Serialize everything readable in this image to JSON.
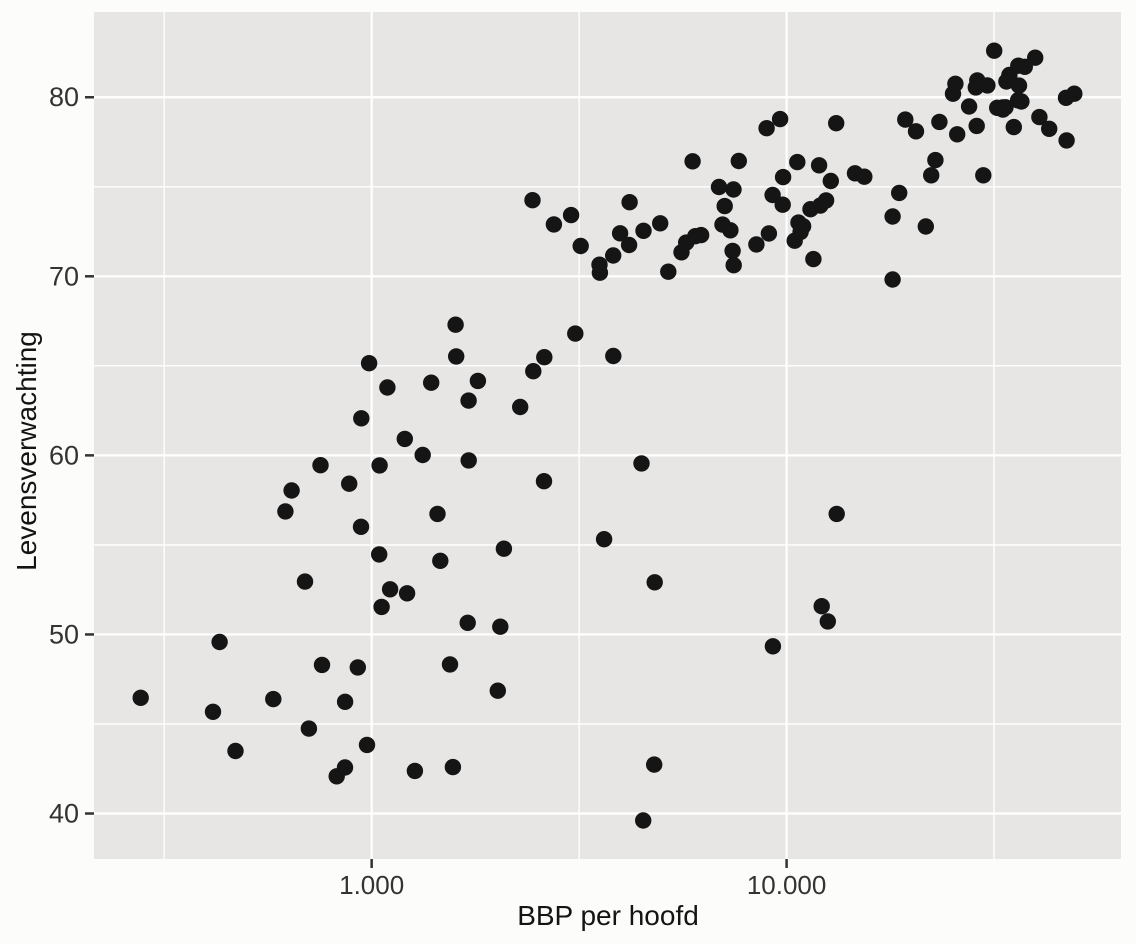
{
  "chart_data": {
    "type": "scatter",
    "title": "",
    "xlabel": "BBP per hoofd",
    "ylabel": "Levensverwachting",
    "x_scale": "log10",
    "xlim": [
      214.2,
      63964
    ],
    "ylim": [
      37.46,
      84.76
    ],
    "x_ticks": [
      {
        "value": 1000,
        "label": "1.000"
      },
      {
        "value": 10000,
        "label": "10.000"
      }
    ],
    "x_minor_breaks": [
      316.23,
      3162.28,
      31622.78
    ],
    "y_ticks": [
      {
        "value": 40,
        "label": "40"
      },
      {
        "value": 50,
        "label": "50"
      },
      {
        "value": 60,
        "label": "60"
      },
      {
        "value": 70,
        "label": "70"
      },
      {
        "value": 80,
        "label": "80"
      }
    ],
    "y_minor_breaks": [
      45,
      55,
      65,
      75
    ],
    "grid": "major and minor, white on gray panel",
    "legend": false,
    "points": [
      [
        974.6,
        43.83
      ],
      [
        5937.0,
        76.42
      ],
      [
        6223.4,
        72.3
      ],
      [
        4797.2,
        42.73
      ],
      [
        12779.4,
        75.32
      ],
      [
        34435.4,
        81.24
      ],
      [
        36126.5,
        79.83
      ],
      [
        29796.0,
        75.64
      ],
      [
        1391.3,
        64.06
      ],
      [
        33692.6,
        79.44
      ],
      [
        1441.3,
        56.73
      ],
      [
        3822.1,
        65.55
      ],
      [
        7446.3,
        74.85
      ],
      [
        12569.9,
        50.73
      ],
      [
        9065.8,
        72.39
      ],
      [
        10680.8,
        73.0
      ],
      [
        1217.0,
        52.3
      ],
      [
        430.1,
        49.58
      ],
      [
        1713.8,
        59.72
      ],
      [
        2042.1,
        50.43
      ],
      [
        36319.2,
        80.65
      ],
      [
        706.0,
        44.74
      ],
      [
        1704.1,
        50.65
      ],
      [
        13171.6,
        78.55
      ],
      [
        4959.1,
        72.96
      ],
      [
        7006.6,
        72.89
      ],
      [
        986.1,
        65.15
      ],
      [
        277.6,
        46.46
      ],
      [
        3632.6,
        55.32
      ],
      [
        9645.1,
        78.78
      ],
      [
        1544.8,
        48.33
      ],
      [
        14619.2,
        75.75
      ],
      [
        8948.1,
        78.27
      ],
      [
        22833.3,
        76.49
      ],
      [
        35278.4,
        78.33
      ],
      [
        2082.5,
        54.79
      ],
      [
        6025.4,
        72.24
      ],
      [
        6873.3,
        74.99
      ],
      [
        5581.2,
        71.34
      ],
      [
        5728.4,
        71.88
      ],
      [
        12154.1,
        51.58
      ],
      [
        641.4,
        58.04
      ],
      [
        690.8,
        52.95
      ],
      [
        33207.1,
        79.31
      ],
      [
        30470.0,
        80.66
      ],
      [
        13206.5,
        56.73
      ],
      [
        752.7,
        59.45
      ],
      [
        32170.4,
        79.41
      ],
      [
        1327.6,
        60.02
      ],
      [
        27538.4,
        79.48
      ],
      [
        5186.1,
        70.26
      ],
      [
        942.7,
        56.01
      ],
      [
        579.2,
        46.39
      ],
      [
        1201.6,
        60.92
      ],
      [
        3548.3,
        70.2
      ],
      [
        39725.0,
        82.21
      ],
      [
        18008.9,
        73.34
      ],
      [
        36180.8,
        81.76
      ],
      [
        2452.2,
        64.7
      ],
      [
        3540.7,
        70.65
      ],
      [
        11605.7,
        70.96
      ],
      [
        4471.1,
        59.55
      ],
      [
        40676.0,
        78.89
      ],
      [
        25523.3,
        80.75
      ],
      [
        28569.7,
        80.55
      ],
      [
        7320.9,
        72.57
      ],
      [
        31656.1,
        82.6
      ],
      [
        4519.5,
        72.54
      ],
      [
        1463.2,
        54.11
      ],
      [
        1593.1,
        67.3
      ],
      [
        23348.1,
        78.62
      ],
      [
        47307.0,
        77.59
      ],
      [
        10461.1,
        71.99
      ],
      [
        1569.3,
        42.59
      ],
      [
        414.5,
        45.68
      ],
      [
        12057.5,
        73.95
      ],
      [
        1044.8,
        59.44
      ],
      [
        759.3,
        48.3
      ],
      [
        12451.7,
        74.24
      ],
      [
        1042.6,
        54.47
      ],
      [
        1803.2,
        64.16
      ],
      [
        10957.0,
        72.8
      ],
      [
        11977.6,
        76.2
      ],
      [
        3095.8,
        66.8
      ],
      [
        9253.9,
        74.54
      ],
      [
        3820.2,
        71.16
      ],
      [
        823.7,
        42.08
      ],
      [
        944.0,
        62.07
      ],
      [
        4811.1,
        52.91
      ],
      [
        1091.4,
        63.79
      ],
      [
        36797.9,
        79.76
      ],
      [
        25185.0,
        80.2
      ],
      [
        2749.3,
        72.9
      ],
      [
        619.7,
        56.87
      ],
      [
        2014.0,
        46.86
      ],
      [
        49357.2,
        80.2
      ],
      [
        22316.2,
        75.64
      ],
      [
        2605.9,
        65.48
      ],
      [
        9809.2,
        75.54
      ],
      [
        4172.8,
        71.75
      ],
      [
        7408.9,
        71.42
      ],
      [
        3190.5,
        71.69
      ],
      [
        15389.9,
        75.56
      ],
      [
        20509.6,
        78.1
      ],
      [
        19328.7,
        78.75
      ],
      [
        7670.1,
        76.44
      ],
      [
        10808.5,
        72.48
      ],
      [
        863.1,
        46.24
      ],
      [
        1598.4,
        65.53
      ],
      [
        21654.8,
        72.78
      ],
      [
        1712.5,
        63.06
      ],
      [
        9786.5,
        74.0
      ],
      [
        862.5,
        42.57
      ],
      [
        47143.2,
        79.97
      ],
      [
        18678.3,
        74.66
      ],
      [
        25768.3,
        77.93
      ],
      [
        926.1,
        48.16
      ],
      [
        9269.7,
        49.34
      ],
      [
        28821.1,
        80.94
      ],
      [
        3970.1,
        72.4
      ],
      [
        2602.4,
        58.56
      ],
      [
        4513.5,
        39.61
      ],
      [
        33859.7,
        80.88
      ],
      [
        37506.4,
        81.7
      ],
      [
        4184.5,
        74.14
      ],
      [
        28718.3,
        78.4
      ],
      [
        1107.5,
        52.52
      ],
      [
        7458.4,
        70.62
      ],
      [
        883.0,
        58.42
      ],
      [
        18008.5,
        69.82
      ],
      [
        7092.9,
        73.92
      ],
      [
        8458.3,
        71.78
      ],
      [
        1056.4,
        51.54
      ],
      [
        33203.3,
        79.43
      ],
      [
        42951.7,
        78.24
      ],
      [
        10611.5,
        76.38
      ],
      [
        11415.8,
        73.75
      ],
      [
        2441.6,
        74.25
      ],
      [
        3025.3,
        73.42
      ],
      [
        2280.8,
        62.7
      ],
      [
        1271.2,
        42.38
      ],
      [
        469.7,
        43.49
      ]
    ]
  },
  "style": {
    "page_bg": "#fcfcfb",
    "panel_bg": "#e7e6e4",
    "grid_color": "#ffffff",
    "point_color": "#151515",
    "tick_mark_color": "#333333",
    "tick_label_color": "#333333",
    "axis_title_color": "#141414"
  }
}
